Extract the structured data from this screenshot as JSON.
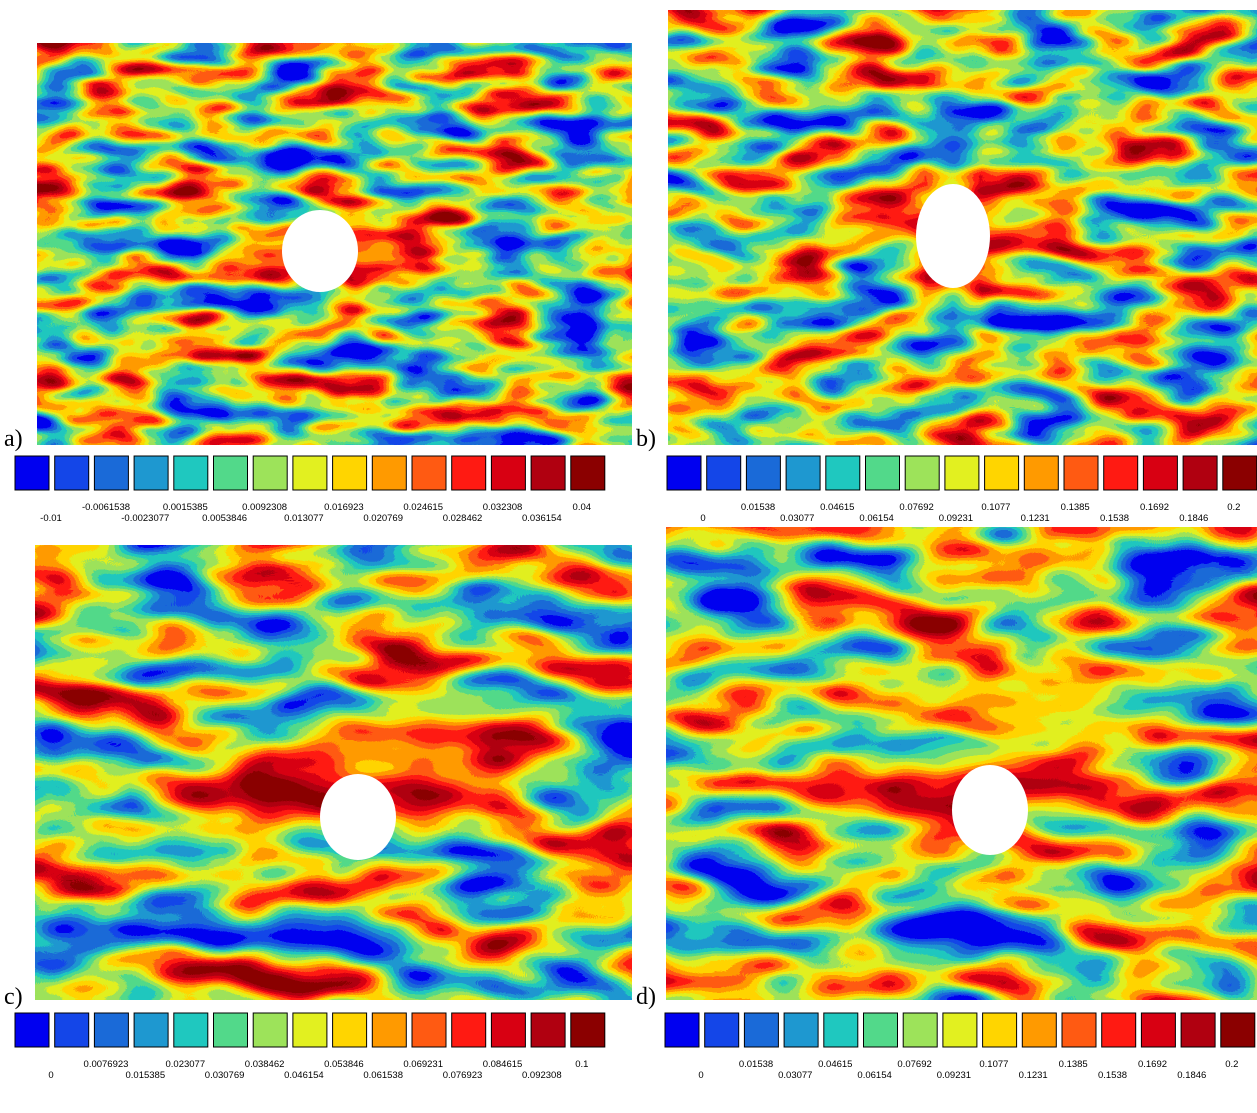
{
  "colormap": [
    "#0000f0",
    "#1446e8",
    "#1a6ad8",
    "#1e98d0",
    "#1fc8bf",
    "#52d98a",
    "#9de35a",
    "#e2f020",
    "#ffd500",
    "#ff9a00",
    "#ff5a12",
    "#ff1a12",
    "#d80012",
    "#b00010",
    "#8b0000"
  ],
  "panels": [
    {
      "label": "a)",
      "colorbar": {
        "labels_top": [
          "-0.0061538",
          "0.0015385",
          "0.0092308",
          "0.016923",
          "0.024615",
          "0.032308",
          "0.04"
        ],
        "labels_bottom": [
          "-0.01",
          "-0.0023077",
          "0.0053846",
          "0.013077",
          "0.020769",
          "0.028462",
          "0.036154"
        ]
      }
    },
    {
      "label": "b)",
      "colorbar": {
        "labels_top": [
          "0.01538",
          "0.04615",
          "0.07692",
          "0.1077",
          "0.1385",
          "0.1692",
          "0.2"
        ],
        "labels_bottom": [
          "0",
          "0.03077",
          "0.06154",
          "0.09231",
          "0.1231",
          "0.1538",
          "0.1846"
        ]
      }
    },
    {
      "label": "c)",
      "colorbar": {
        "labels_top": [
          "0.0076923",
          "0.023077",
          "0.038462",
          "0.053846",
          "0.069231",
          "0.084615",
          "0.1"
        ],
        "labels_bottom": [
          "0",
          "0.015385",
          "0.030769",
          "0.046154",
          "0.061538",
          "0.076923",
          "0.092308"
        ]
      }
    },
    {
      "label": "d)",
      "colorbar": {
        "labels_top": [
          "0.01538",
          "0.04615",
          "0.07692",
          "0.1077",
          "0.1385",
          "0.1692",
          "0.2"
        ],
        "labels_bottom": [
          "0",
          "0.03077",
          "0.06154",
          "0.09231",
          "0.1231",
          "0.1538",
          "0.1846"
        ]
      }
    }
  ]
}
